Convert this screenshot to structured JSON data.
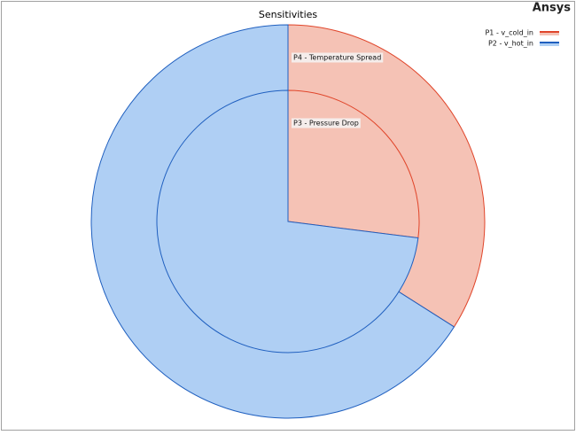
{
  "logo": "Ansys",
  "chart_data": {
    "type": "pie",
    "title": "Sensitivities",
    "series": [
      {
        "name": "P1 - v_cold_in",
        "color": "#e0452a",
        "fill": "#f5c2b5"
      },
      {
        "name": "P2 - v_hot_in",
        "color": "#1f5fbf",
        "fill": "#afcff4"
      }
    ],
    "rings": [
      {
        "label": "P4 - Temperature Spread",
        "values": [
          34,
          66
        ]
      },
      {
        "label": "P3 - Pressure Drop",
        "values": [
          27,
          73
        ]
      }
    ],
    "legend": "top-right"
  }
}
